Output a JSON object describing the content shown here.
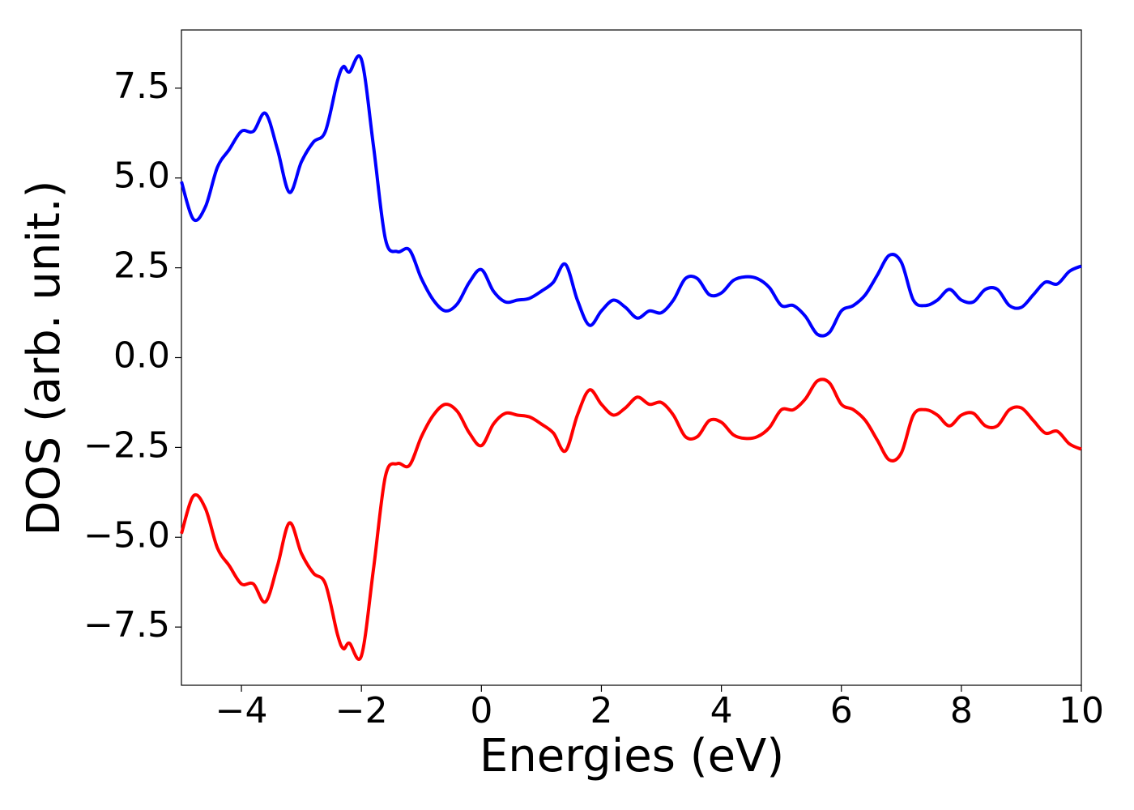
{
  "chart_data": {
    "type": "line",
    "xlabel": "Energies (eV)",
    "ylabel": "DOS (arb. unit.)",
    "x": [
      -5,
      -4.8,
      -4.6,
      -4.4,
      -4.2,
      -4.0,
      -3.8,
      -3.6,
      -3.4,
      -3.2,
      -3.0,
      -2.8,
      -2.6,
      -2.4,
      -2.3,
      -2.2,
      -2.0,
      -1.8,
      -1.6,
      -1.4,
      -1.2,
      -1.0,
      -0.8,
      -0.6,
      -0.4,
      -0.2,
      0.0,
      0.2,
      0.4,
      0.6,
      0.8,
      1.0,
      1.2,
      1.4,
      1.6,
      1.8,
      2.0,
      2.2,
      2.4,
      2.6,
      2.8,
      3.0,
      3.2,
      3.4,
      3.6,
      3.8,
      4.0,
      4.2,
      4.4,
      4.6,
      4.8,
      5.0,
      5.2,
      5.4,
      5.6,
      5.8,
      6.0,
      6.2,
      6.4,
      6.6,
      6.8,
      7.0,
      7.2,
      7.4,
      7.6,
      7.8,
      8.0,
      8.2,
      8.4,
      8.6,
      8.8,
      9.0,
      9.2,
      9.4,
      9.6,
      9.8,
      10.0
    ],
    "series": [
      {
        "color": "#0000ff",
        "values": [
          4.9,
          3.85,
          4.2,
          5.3,
          5.8,
          6.3,
          6.3,
          6.8,
          5.8,
          4.6,
          5.45,
          6.0,
          6.3,
          7.7,
          8.1,
          7.95,
          8.3,
          5.9,
          3.3,
          2.95,
          3.0,
          2.2,
          1.6,
          1.3,
          1.5,
          2.1,
          2.45,
          1.85,
          1.55,
          1.6,
          1.65,
          1.85,
          2.1,
          2.6,
          1.6,
          0.9,
          1.3,
          1.6,
          1.4,
          1.1,
          1.3,
          1.25,
          1.6,
          2.2,
          2.2,
          1.75,
          1.8,
          2.15,
          2.25,
          2.2,
          1.95,
          1.45,
          1.45,
          1.15,
          0.65,
          0.7,
          1.3,
          1.45,
          1.75,
          2.3,
          2.85,
          2.65,
          1.6,
          1.45,
          1.6,
          1.9,
          1.6,
          1.55,
          1.9,
          1.9,
          1.45,
          1.4,
          1.75,
          2.1,
          2.05,
          2.4,
          2.55
        ]
      },
      {
        "color": "#ff0000",
        "values": [
          -4.9,
          -3.85,
          -4.2,
          -5.3,
          -5.8,
          -6.3,
          -6.3,
          -6.8,
          -5.8,
          -4.6,
          -5.45,
          -6.0,
          -6.3,
          -7.7,
          -8.1,
          -7.95,
          -8.3,
          -5.9,
          -3.3,
          -2.95,
          -3.0,
          -2.2,
          -1.6,
          -1.3,
          -1.5,
          -2.1,
          -2.45,
          -1.85,
          -1.55,
          -1.6,
          -1.65,
          -1.85,
          -2.1,
          -2.6,
          -1.6,
          -0.9,
          -1.3,
          -1.6,
          -1.4,
          -1.1,
          -1.3,
          -1.25,
          -1.6,
          -2.2,
          -2.2,
          -1.75,
          -1.8,
          -2.15,
          -2.25,
          -2.2,
          -1.95,
          -1.45,
          -1.45,
          -1.15,
          -0.65,
          -0.7,
          -1.3,
          -1.45,
          -1.75,
          -2.3,
          -2.85,
          -2.65,
          -1.6,
          -1.45,
          -1.6,
          -1.9,
          -1.6,
          -1.55,
          -1.9,
          -1.9,
          -1.45,
          -1.4,
          -1.75,
          -2.1,
          -2.05,
          -2.4,
          -2.55
        ]
      }
    ],
    "xlim": [
      -5,
      10
    ],
    "ylim": [
      -9.12,
      9.12
    ],
    "xticks": [
      {
        "value": -4,
        "label": "−4"
      },
      {
        "value": -2,
        "label": "−2"
      },
      0,
      2,
      4,
      6,
      8,
      10
    ],
    "yticks": [
      {
        "value": -7.5,
        "label": "−7.5"
      },
      {
        "value": -5,
        "label": "−5.0"
      },
      {
        "value": -2.5,
        "label": "−2.5"
      },
      {
        "value": 0,
        "label": "0.0"
      },
      2.5,
      7.5,
      {
        "value": 5,
        "label": "5.0"
      }
    ],
    "grid": false
  }
}
